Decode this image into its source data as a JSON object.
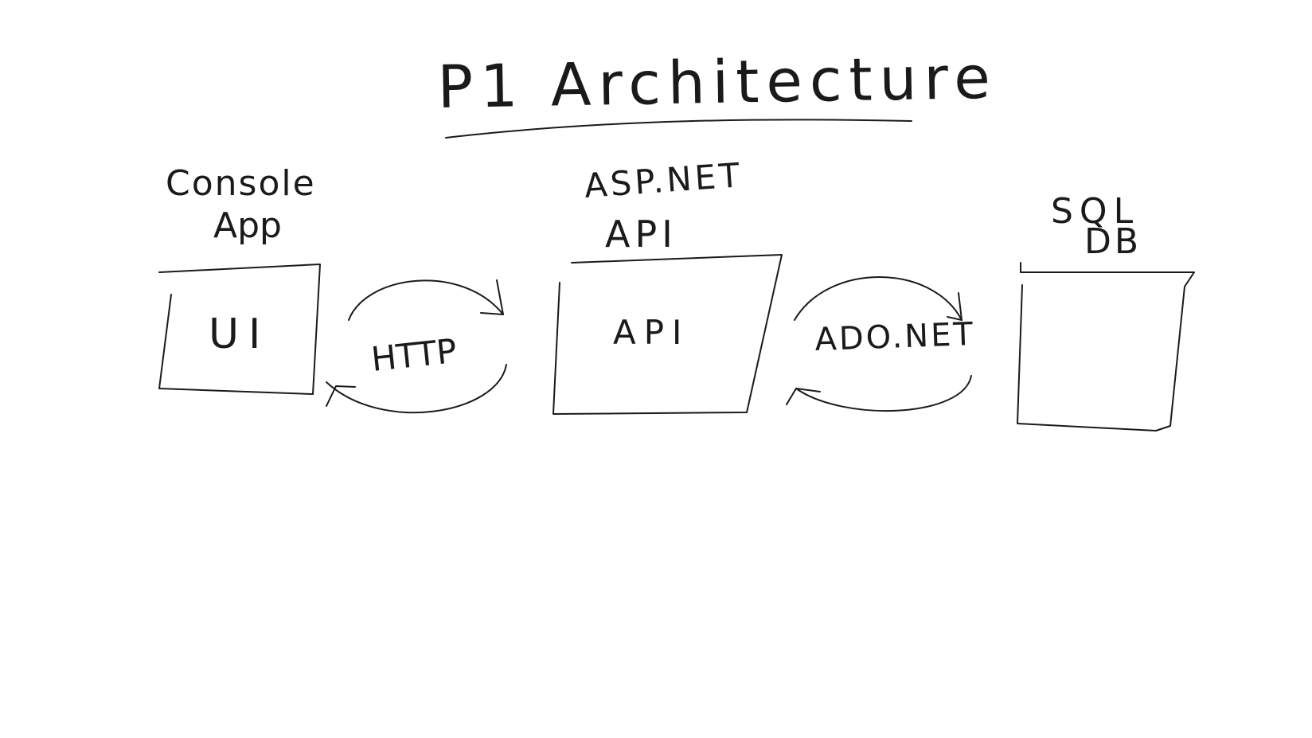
{
  "title": "P1 Architecture",
  "nodes": [
    {
      "id": "console-app",
      "label": "Console App",
      "inner": "UI"
    },
    {
      "id": "aspnet-api",
      "label": "ASP.NET API",
      "inner": "API"
    },
    {
      "id": "sql-db",
      "label": "SQL DB",
      "inner": ""
    }
  ],
  "connectors": [
    {
      "id": "http",
      "label": "HTTP"
    },
    {
      "id": "adonet",
      "label": "ADO.NET"
    }
  ],
  "colors": {
    "ink": "#1a1a1a",
    "background": "#ffffff"
  }
}
